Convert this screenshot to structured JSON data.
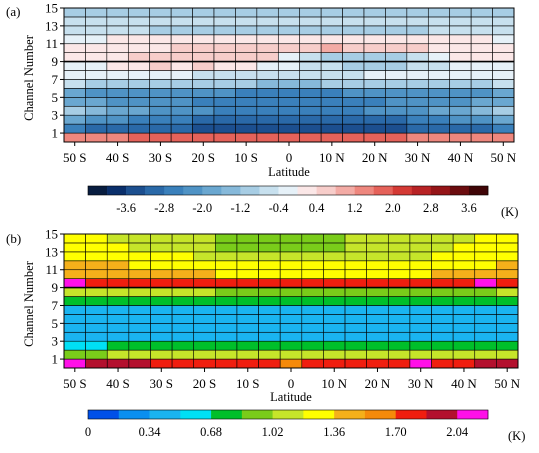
{
  "chart_data": [
    {
      "type": "heatmap",
      "panel_label": "(a)",
      "xlabel": "Latitude",
      "ylabel": "Channel Number",
      "x_tick_labels": [
        "50 S",
        "40 S",
        "30 S",
        "20 S",
        "10 S",
        "0",
        "10 N",
        "20 N",
        "30 N",
        "40 N",
        "50 N"
      ],
      "y_tick_labels": [
        "1",
        "3",
        "5",
        "7",
        "9",
        "11",
        "13",
        "15"
      ],
      "y_ticks": [
        1,
        3,
        5,
        7,
        9,
        11,
        13,
        15
      ],
      "x_range": [
        -50,
        50
      ],
      "y_range": [
        0.5,
        15.5
      ],
      "x_centers": [
        -50,
        -45,
        -40,
        -35,
        -30,
        -25,
        -20,
        -15,
        -10,
        -5,
        0,
        5,
        10,
        15,
        20,
        25,
        30,
        35,
        40,
        45,
        50
      ],
      "channels": [
        1,
        2,
        3,
        4,
        5,
        6,
        7,
        8,
        9,
        10,
        11,
        12,
        13,
        14,
        15
      ],
      "values": [
        [
          1.3,
          1.4,
          1.5,
          1.6,
          1.6,
          1.7,
          1.7,
          1.7,
          1.8,
          1.8,
          1.9,
          1.9,
          1.8,
          1.7,
          1.6,
          1.6,
          1.5,
          1.4,
          1.4,
          1.3,
          1.3
        ],
        [
          -2.8,
          -2.9,
          -3.0,
          -3.1,
          -3.2,
          -3.2,
          -3.3,
          -3.4,
          -3.5,
          -3.6,
          -3.6,
          -3.6,
          -3.6,
          -3.5,
          -3.4,
          -3.3,
          -3.2,
          -3.1,
          -3.0,
          -2.9,
          -2.8
        ],
        [
          -2.0,
          -2.2,
          -2.4,
          -2.6,
          -2.7,
          -2.8,
          -2.9,
          -3.0,
          -3.1,
          -3.2,
          -3.2,
          -3.2,
          -3.2,
          -3.1,
          -3.0,
          -2.9,
          -2.8,
          -2.6,
          -2.4,
          -2.2,
          -2.0
        ],
        [
          -1.2,
          -1.5,
          -1.8,
          -2.0,
          -2.2,
          -2.3,
          -2.4,
          -2.5,
          -2.6,
          -2.7,
          -2.7,
          -2.7,
          -2.6,
          -2.5,
          -2.4,
          -2.3,
          -2.2,
          -2.0,
          -1.8,
          -1.5,
          -1.2
        ],
        [
          -1.8,
          -2.0,
          -2.2,
          -2.3,
          -2.4,
          -2.4,
          -2.5,
          -2.5,
          -2.6,
          -2.6,
          -2.6,
          -2.6,
          -2.6,
          -2.5,
          -2.5,
          -2.4,
          -2.4,
          -2.3,
          -2.2,
          -2.0,
          -1.8
        ],
        [
          -2.0,
          -2.1,
          -2.2,
          -2.3,
          -2.3,
          -2.4,
          -2.4,
          -2.4,
          -2.5,
          -2.5,
          -2.5,
          -2.5,
          -2.5,
          -2.4,
          -2.4,
          -2.4,
          -2.3,
          -2.3,
          -2.2,
          -2.1,
          -2.0
        ],
        [
          -0.8,
          -0.9,
          -1.0,
          -1.1,
          -1.1,
          -1.2,
          -1.2,
          -1.2,
          -1.2,
          -1.3,
          -1.3,
          -1.3,
          -1.2,
          -1.2,
          -1.2,
          -1.1,
          -1.1,
          -1.0,
          -0.9,
          -0.9,
          -0.8
        ],
        [
          -0.3,
          -0.3,
          -0.4,
          -0.4,
          -0.4,
          -0.4,
          -0.5,
          -0.5,
          -0.5,
          -0.5,
          -0.5,
          -0.5,
          -0.5,
          -0.5,
          -0.4,
          -0.4,
          -0.4,
          -0.4,
          -0.3,
          -0.3,
          -0.3
        ],
        [
          -0.2,
          -0.1,
          0.1,
          0.2,
          0.6,
          0.3,
          0.6,
          0.2,
          0.1,
          -0.1,
          -0.3,
          -0.5,
          -0.8,
          -1.0,
          -1.1,
          -1.0,
          -0.8,
          -0.6,
          -0.4,
          -0.2,
          -0.1
        ],
        [
          0.2,
          0.3,
          0.3,
          0.4,
          0.4,
          0.4,
          0.5,
          0.5,
          0.5,
          0.4,
          -0.3,
          -0.8,
          -1.0,
          -1.1,
          -1.0,
          -0.9,
          -0.6,
          -0.3,
          0.1,
          0.3,
          0.3
        ],
        [
          0.1,
          0.2,
          0.2,
          0.3,
          0.3,
          0.4,
          0.4,
          0.4,
          0.4,
          0.5,
          0.6,
          0.7,
          0.9,
          0.6,
          0.5,
          0.4,
          0.4,
          0.3,
          0.3,
          0.2,
          0.2
        ],
        [
          -0.2,
          -0.1,
          0.1,
          0.1,
          0.2,
          0.2,
          0.2,
          0.2,
          0.3,
          0.3,
          0.3,
          0.3,
          0.3,
          0.3,
          0.2,
          0.2,
          0.2,
          0.1,
          0.1,
          0.1,
          -0.1
        ],
        [
          -0.8,
          -0.8,
          -0.8,
          -0.8,
          -0.9,
          -0.9,
          -0.9,
          -0.9,
          -0.9,
          -0.9,
          -0.9,
          -0.9,
          -0.9,
          -0.9,
          -0.9,
          -0.9,
          -0.9,
          -0.8,
          -0.8,
          -0.8,
          -0.8
        ],
        [
          -0.5,
          -0.5,
          -0.6,
          -0.6,
          -0.6,
          -0.6,
          -0.6,
          -0.6,
          -0.6,
          -0.6,
          -0.6,
          -0.6,
          -0.6,
          -0.6,
          -0.6,
          -0.6,
          -0.6,
          -0.6,
          -0.6,
          -0.5,
          -0.5
        ],
        [
          -1.1,
          -1.1,
          -1.1,
          -1.1,
          -1.1,
          -1.1,
          -1.1,
          -1.1,
          -1.1,
          -1.1,
          -1.1,
          -1.1,
          -1.1,
          -1.1,
          -1.1,
          -1.1,
          -1.1,
          -1.1,
          -1.1,
          -1.1,
          -1.1
        ]
      ],
      "colorbar": {
        "labels": [
          "-3.6",
          "-2.8",
          "-2.0",
          "-1.2",
          "-0.4",
          "0.4",
          "1.2",
          "2.0",
          "2.8",
          "3.6"
        ],
        "unit": "(K)",
        "levels": [
          -4.0,
          -3.6,
          -3.2,
          -2.8,
          -2.4,
          -2.0,
          -1.6,
          -1.2,
          -0.8,
          -0.4,
          0,
          0.4,
          0.8,
          1.2,
          1.6,
          2.0,
          2.4,
          2.8,
          3.2,
          3.6
        ],
        "colors": [
          "#081d40",
          "#0a2f6b",
          "#1c4f8f",
          "#2a69a8",
          "#3a80bb",
          "#4f93c5",
          "#6aa7d0",
          "#86b9da",
          "#a7cde4",
          "#c7e0ee",
          "#e6f1f8",
          "#fbe7e7",
          "#f7cdca",
          "#f3aba5",
          "#ee877e",
          "#e5625a",
          "#d43a35",
          "#b82325",
          "#951518",
          "#6b0c0f",
          "#3f0507"
        ]
      }
    },
    {
      "type": "heatmap",
      "panel_label": "(b)",
      "xlabel": "Latitude",
      "ylabel": "Channel Number",
      "x_tick_labels": [
        "50 S",
        "40 S",
        "30 S",
        "20 S",
        "10 S",
        "0",
        "10 N",
        "20 N",
        "30 N",
        "40 N",
        "50 N"
      ],
      "y_tick_labels": [
        "1",
        "3",
        "5",
        "7",
        "9",
        "11",
        "13",
        "15"
      ],
      "y_ticks": [
        1,
        3,
        5,
        7,
        9,
        11,
        13,
        15
      ],
      "x_range": [
        -50,
        50
      ],
      "y_range": [
        0.5,
        15.5
      ],
      "x_centers": [
        -50,
        -45,
        -40,
        -35,
        -30,
        -25,
        -20,
        -15,
        -10,
        -5,
        0,
        5,
        10,
        15,
        20,
        25,
        30,
        35,
        40,
        45,
        50
      ],
      "channels": [
        1,
        2,
        3,
        4,
        5,
        6,
        7,
        8,
        9,
        10,
        11,
        12,
        13,
        14,
        15
      ],
      "values": [
        [
          2.2,
          2.0,
          1.9,
          1.9,
          1.8,
          1.8,
          1.8,
          1.8,
          1.8,
          1.8,
          1.6,
          1.8,
          1.8,
          1.8,
          1.8,
          1.8,
          2.2,
          1.8,
          1.8,
          1.9,
          1.9
        ],
        [
          0.9,
          0.9,
          1.1,
          1.1,
          1.1,
          1.1,
          1.1,
          1.1,
          1.1,
          1.1,
          1.1,
          1.1,
          1.1,
          1.1,
          1.1,
          1.1,
          1.1,
          1.1,
          1.1,
          1.1,
          1.1
        ],
        [
          0.6,
          0.6,
          0.7,
          0.7,
          0.7,
          0.7,
          0.7,
          0.7,
          0.7,
          0.7,
          0.7,
          0.7,
          0.7,
          0.7,
          0.7,
          0.7,
          0.7,
          0.7,
          0.7,
          0.7,
          0.7
        ],
        [
          0.5,
          0.5,
          0.5,
          0.5,
          0.5,
          0.5,
          0.5,
          0.5,
          0.4,
          0.5,
          0.5,
          0.5,
          0.5,
          0.5,
          0.5,
          0.5,
          0.5,
          0.5,
          0.5,
          0.5,
          0.5
        ],
        [
          0.5,
          0.5,
          0.5,
          0.5,
          0.5,
          0.5,
          0.5,
          0.5,
          0.5,
          0.5,
          0.5,
          0.5,
          0.5,
          0.5,
          0.5,
          0.5,
          0.5,
          0.5,
          0.5,
          0.5,
          0.5
        ],
        [
          0.5,
          0.5,
          0.5,
          0.5,
          0.5,
          0.5,
          0.5,
          0.5,
          0.5,
          0.5,
          0.5,
          0.5,
          0.5,
          0.5,
          0.5,
          0.5,
          0.5,
          0.5,
          0.5,
          0.5,
          0.5
        ],
        [
          0.4,
          0.5,
          0.5,
          0.5,
          0.5,
          0.5,
          0.5,
          0.5,
          0.5,
          0.5,
          0.5,
          0.5,
          0.5,
          0.5,
          0.5,
          0.5,
          0.5,
          0.5,
          0.5,
          0.5,
          0.5
        ],
        [
          0.7,
          0.7,
          0.7,
          0.7,
          0.7,
          0.7,
          0.7,
          0.7,
          0.7,
          0.7,
          0.7,
          0.7,
          0.7,
          0.7,
          0.7,
          0.7,
          0.7,
          0.7,
          0.7,
          0.7,
          0.7
        ],
        [
          1.1,
          1.1,
          1.1,
          1.1,
          1.1,
          1.1,
          1.1,
          0.9,
          0.9,
          0.9,
          0.9,
          0.9,
          0.9,
          0.9,
          0.9,
          0.9,
          0.9,
          0.9,
          0.9,
          0.9,
          1.1
        ],
        [
          2.2,
          1.8,
          1.8,
          1.8,
          1.8,
          1.8,
          1.8,
          1.8,
          1.8,
          1.8,
          1.8,
          1.8,
          1.8,
          1.8,
          1.8,
          1.8,
          1.8,
          1.8,
          1.8,
          2.2,
          1.8
        ],
        [
          1.5,
          1.5,
          1.5,
          1.4,
          1.4,
          1.4,
          1.4,
          1.2,
          1.2,
          1.2,
          1.2,
          1.2,
          1.2,
          1.2,
          1.2,
          1.2,
          1.2,
          1.4,
          1.4,
          1.4,
          1.5
        ],
        [
          1.4,
          1.4,
          1.4,
          1.3,
          1.3,
          1.3,
          1.3,
          1.2,
          1.2,
          1.2,
          1.2,
          1.2,
          1.2,
          1.2,
          1.2,
          1.2,
          1.2,
          1.3,
          1.3,
          1.3,
          1.4
        ],
        [
          1.3,
          1.3,
          1.2,
          1.2,
          1.2,
          1.2,
          1.1,
          1.1,
          1.1,
          1.1,
          1.1,
          1.1,
          1.1,
          1.1,
          1.1,
          1.1,
          1.1,
          1.2,
          1.2,
          1.2,
          1.3
        ],
        [
          1.2,
          1.2,
          1.2,
          1.1,
          1.1,
          1.1,
          1.1,
          0.9,
          0.9,
          0.9,
          0.9,
          0.9,
          0.9,
          1.1,
          1.1,
          1.1,
          1.1,
          1.1,
          1.2,
          1.2,
          1.2
        ],
        [
          1.2,
          1.2,
          1.1,
          1.1,
          1.1,
          1.1,
          1.1,
          0.9,
          0.9,
          0.9,
          0.9,
          0.9,
          0.9,
          1.1,
          1.1,
          1.1,
          1.1,
          1.1,
          1.1,
          1.2,
          1.2
        ]
      ],
      "colorbar": {
        "labels": [
          "0",
          "0.34",
          "0.68",
          "1.02",
          "1.36",
          "1.70",
          "2.04"
        ],
        "unit": "(K)",
        "levels": [
          0.17,
          0.34,
          0.51,
          0.68,
          0.85,
          1.02,
          1.19,
          1.36,
          1.53,
          1.7,
          1.87,
          2.04
        ],
        "colors": [
          "#0050e8",
          "#0a8ff0",
          "#1ab4f0",
          "#00e0f5",
          "#00bf2a",
          "#7acc1a",
          "#c6e52a",
          "#ffff00",
          "#f5b01a",
          "#f58a0a",
          "#f01e0f",
          "#b3102e",
          "#ff10e8"
        ]
      }
    }
  ]
}
